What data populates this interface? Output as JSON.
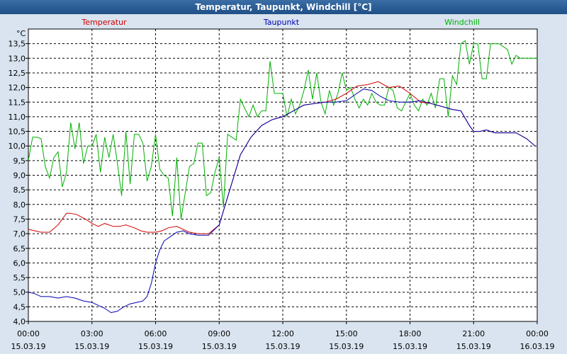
{
  "window": {
    "title": "Temperatur, Taupunkt, Windchill [°C]"
  },
  "chart_data": {
    "type": "line",
    "title": "Temperatur, Taupunkt, Windchill [°C]",
    "unit_label": "°C",
    "ylim": [
      4.0,
      14.0
    ],
    "xlim": [
      0,
      24
    ],
    "grid": true,
    "legend": "top",
    "y_ticks": [
      "4,0",
      "4,5",
      "5,0",
      "5,5",
      "6,0",
      "6,5",
      "7,0",
      "7,5",
      "8,0",
      "8,5",
      "9,0",
      "9,5",
      "10,0",
      "10,5",
      "11,0",
      "11,5",
      "12,0",
      "12,5",
      "13,0",
      "13,5"
    ],
    "x_ticks": [
      {
        "hours": 0,
        "time": "00:00",
        "date": "15.03.19"
      },
      {
        "hours": 3,
        "time": "03:00",
        "date": "15.03.19"
      },
      {
        "hours": 6,
        "time": "06:00",
        "date": "15.03.19"
      },
      {
        "hours": 9,
        "time": "09:00",
        "date": "15.03.19"
      },
      {
        "hours": 12,
        "time": "12:00",
        "date": "15.03.19"
      },
      {
        "hours": 15,
        "time": "15:00",
        "date": "15.03.19"
      },
      {
        "hours": 18,
        "time": "18:00",
        "date": "15.03.19"
      },
      {
        "hours": 21,
        "time": "21:00",
        "date": "15.03.19"
      },
      {
        "hours": 24,
        "time": "00:00",
        "date": "16.03.19"
      }
    ],
    "series": [
      {
        "name": "Temperatur",
        "color": "#d00000",
        "x": [
          0,
          0.3,
          0.6,
          1.0,
          1.4,
          1.8,
          2.0,
          2.3,
          2.7,
          3.0,
          3.3,
          3.6,
          4.0,
          4.3,
          4.6,
          5.0,
          5.3,
          5.6,
          6.0,
          6.3,
          6.6,
          7.0,
          7.3,
          7.6,
          8.0,
          8.5,
          9.0,
          9.5,
          10.0,
          10.5,
          11.0,
          11.5,
          12.0,
          12.5,
          13.0,
          13.5,
          14.0,
          14.5,
          15.0,
          15.5,
          16.0,
          16.5,
          17.0,
          17.5,
          18.0,
          18.5,
          19.0,
          19.5,
          20.0,
          20.4,
          20.8,
          21.0,
          21.3,
          21.6,
          22.0,
          22.5,
          23.0,
          23.5,
          23.9
        ],
        "values": [
          7.15,
          7.1,
          7.05,
          7.05,
          7.3,
          7.7,
          7.7,
          7.65,
          7.5,
          7.35,
          7.25,
          7.35,
          7.25,
          7.25,
          7.3,
          7.2,
          7.1,
          7.05,
          7.05,
          7.1,
          7.2,
          7.25,
          7.15,
          7.05,
          7.0,
          7.0,
          7.3,
          8.5,
          9.7,
          10.3,
          10.7,
          10.9,
          11.0,
          11.2,
          11.4,
          11.45,
          11.5,
          11.6,
          11.8,
          12.05,
          12.1,
          12.2,
          12.0,
          12.05,
          11.8,
          11.5,
          11.45,
          11.35,
          11.25,
          11.2,
          10.7,
          10.5,
          10.5,
          10.55,
          10.45,
          10.45,
          10.45,
          10.25,
          10.0
        ]
      },
      {
        "name": "Taupunkt",
        "color": "#0000b0",
        "x": [
          0,
          0.3,
          0.6,
          1.0,
          1.4,
          1.8,
          2.2,
          2.6,
          3.0,
          3.3,
          3.6,
          3.9,
          4.2,
          4.5,
          4.8,
          5.1,
          5.4,
          5.6,
          5.8,
          6.0,
          6.2,
          6.4,
          6.7,
          7.0,
          7.3,
          7.6,
          8.0,
          8.5,
          9.0,
          9.5,
          10.0,
          10.5,
          11.0,
          11.5,
          12.0,
          12.5,
          13.0,
          13.5,
          14.0,
          14.5,
          15.0,
          15.5,
          15.8,
          16.2,
          16.6,
          17.0,
          17.5,
          18.0,
          18.5,
          19.0,
          19.5,
          20.0,
          20.4,
          20.8,
          21.0,
          21.3,
          21.6,
          22.0,
          22.5,
          23.0,
          23.5,
          23.9
        ],
        "values": [
          5.0,
          4.95,
          4.85,
          4.85,
          4.8,
          4.85,
          4.8,
          4.7,
          4.65,
          4.55,
          4.45,
          4.3,
          4.35,
          4.5,
          4.6,
          4.65,
          4.7,
          4.85,
          5.3,
          6.0,
          6.45,
          6.75,
          6.9,
          7.05,
          7.1,
          7.0,
          6.95,
          6.95,
          7.3,
          8.5,
          9.7,
          10.3,
          10.7,
          10.9,
          11.0,
          11.2,
          11.4,
          11.45,
          11.5,
          11.5,
          11.55,
          11.8,
          11.95,
          11.9,
          11.7,
          11.55,
          11.5,
          11.5,
          11.55,
          11.45,
          11.35,
          11.25,
          11.2,
          10.7,
          10.5,
          10.5,
          10.55,
          10.45,
          10.45,
          10.45,
          10.25,
          10.0
        ]
      },
      {
        "name": "Windchill",
        "color": "#00b000",
        "x": [
          0,
          0.2,
          0.4,
          0.6,
          0.8,
          1.0,
          1.2,
          1.4,
          1.6,
          1.8,
          2.0,
          2.2,
          2.4,
          2.6,
          2.8,
          3.0,
          3.2,
          3.4,
          3.6,
          3.8,
          4.0,
          4.2,
          4.4,
          4.6,
          4.8,
          5.0,
          5.2,
          5.4,
          5.6,
          5.8,
          6.0,
          6.2,
          6.4,
          6.6,
          6.8,
          7.0,
          7.2,
          7.4,
          7.6,
          7.8,
          8.0,
          8.2,
          8.4,
          8.6,
          8.8,
          9.0,
          9.2,
          9.4,
          9.6,
          9.8,
          10.0,
          10.2,
          10.4,
          10.6,
          10.8,
          11.0,
          11.2,
          11.4,
          11.6,
          11.8,
          12.0,
          12.2,
          12.4,
          12.6,
          12.8,
          13.0,
          13.2,
          13.4,
          13.6,
          13.8,
          14.0,
          14.2,
          14.4,
          14.6,
          14.8,
          15.0,
          15.2,
          15.4,
          15.6,
          15.8,
          16.0,
          16.2,
          16.4,
          16.6,
          16.8,
          17.0,
          17.2,
          17.4,
          17.6,
          17.8,
          18.0,
          18.2,
          18.4,
          18.6,
          18.8,
          19.0,
          19.2,
          19.4,
          19.6,
          19.8,
          20.0,
          20.2,
          20.4,
          20.6,
          20.8,
          21.0,
          21.2,
          21.4,
          21.6,
          21.8,
          22.0,
          22.2,
          22.4,
          22.6,
          22.8,
          23.0,
          23.2,
          23.4,
          23.6,
          23.8,
          24.0
        ],
        "values": [
          9.5,
          10.3,
          10.3,
          10.25,
          9.3,
          8.9,
          9.6,
          9.8,
          8.6,
          9.1,
          10.8,
          9.9,
          10.8,
          9.4,
          10.0,
          10.0,
          10.4,
          9.1,
          10.3,
          9.6,
          10.4,
          9.4,
          8.3,
          10.5,
          8.7,
          10.4,
          10.4,
          10.1,
          8.8,
          9.3,
          10.4,
          9.2,
          9.0,
          8.9,
          7.6,
          9.6,
          7.5,
          8.4,
          9.3,
          9.4,
          10.1,
          10.1,
          8.3,
          8.4,
          9.1,
          9.6,
          7.9,
          10.4,
          10.3,
          10.2,
          11.6,
          11.3,
          11.0,
          11.4,
          11.0,
          11.2,
          11.2,
          12.9,
          11.8,
          11.8,
          11.8,
          11.0,
          11.6,
          11.1,
          11.4,
          11.9,
          12.6,
          11.6,
          12.5,
          11.5,
          11.1,
          11.9,
          11.4,
          11.8,
          12.5,
          11.9,
          12.0,
          11.6,
          11.3,
          11.6,
          11.4,
          11.8,
          11.5,
          11.4,
          11.4,
          12.0,
          11.9,
          11.3,
          11.2,
          11.5,
          11.8,
          11.4,
          11.2,
          11.6,
          11.4,
          11.8,
          11.3,
          12.3,
          12.3,
          11.0,
          12.4,
          12.1,
          13.5,
          13.6,
          12.8,
          13.5,
          13.5,
          12.3,
          12.3,
          13.5,
          13.5,
          13.5,
          13.4,
          13.3,
          12.8,
          13.1,
          13.0,
          13.0,
          13.0,
          13.0,
          13.0
        ]
      }
    ]
  }
}
